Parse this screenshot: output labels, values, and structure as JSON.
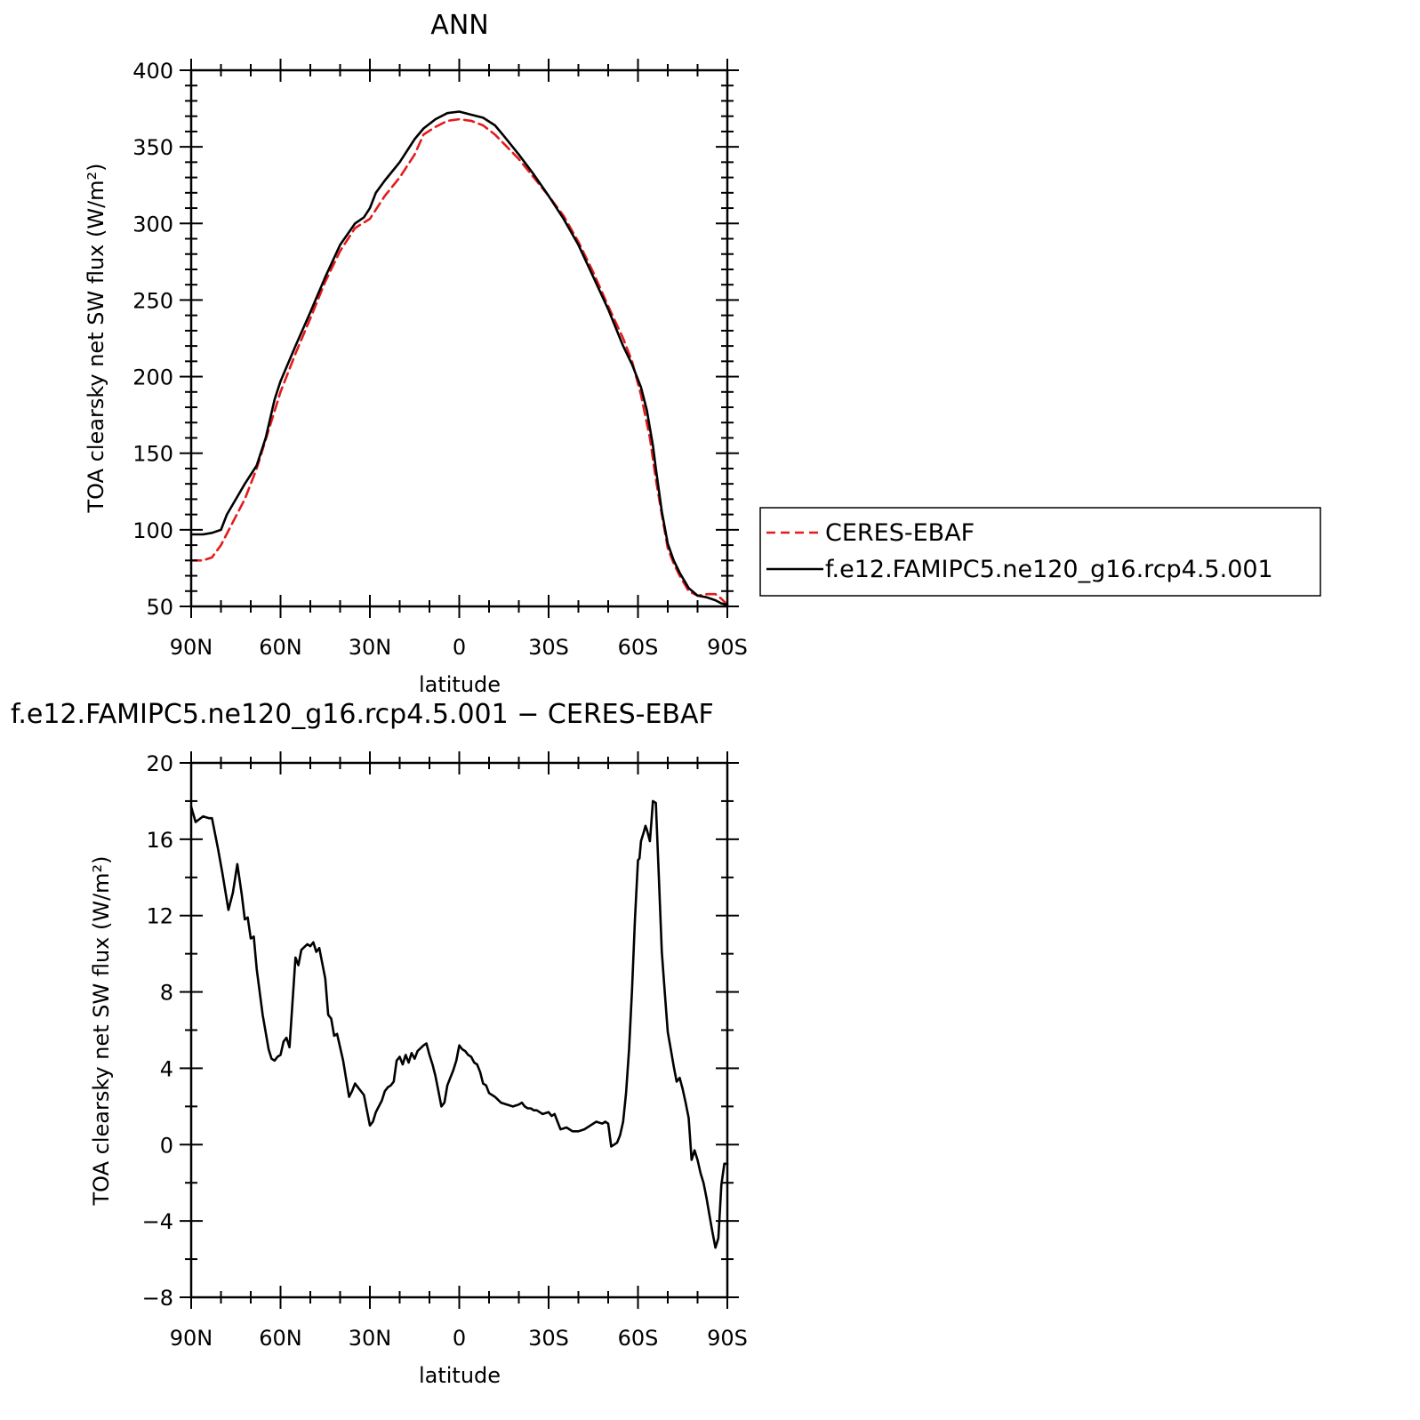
{
  "chart_data": [
    {
      "type": "line",
      "title": "ANN",
      "xlabel": "latitude",
      "ylabel": "TOA clearsky net SW flux (W/m²)",
      "xlim": [
        90,
        -90
      ],
      "ylim": [
        50,
        400
      ],
      "xticks": [
        90,
        60,
        30,
        0,
        -30,
        -60,
        -90
      ],
      "xtick_labels": [
        "90N",
        "60N",
        "30N",
        "0",
        "30S",
        "60S",
        "90S"
      ],
      "yticks": [
        50,
        100,
        150,
        200,
        250,
        300,
        350,
        400
      ],
      "ytick_labels": [
        "50",
        "100",
        "150",
        "200",
        "250",
        "300",
        "350",
        "400"
      ],
      "legend": {
        "placement": "right",
        "entries": [
          "CERES-EBAF",
          "f.e12.FAMIPC5.ne120_g16.rcp4.5.001"
        ]
      },
      "series": [
        {
          "name": "CERES-EBAF",
          "color": "#e41a1c",
          "dash": "dashed",
          "x": [
            90,
            86,
            83,
            80,
            76,
            72,
            68,
            64,
            60,
            55,
            50,
            45,
            40,
            35,
            30,
            25,
            20,
            15,
            12,
            8,
            4,
            0,
            -4,
            -8,
            -12,
            -15,
            -20,
            -25,
            -30,
            -35,
            -40,
            -45,
            -50,
            -55,
            -58,
            -61,
            -64,
            -66,
            -68,
            -70,
            -72,
            -74,
            -77,
            -80,
            -83,
            -86,
            -88,
            -90
          ],
          "y": [
            80,
            80,
            82,
            90,
            105,
            120,
            140,
            165,
            190,
            215,
            238,
            262,
            282,
            297,
            303,
            318,
            330,
            345,
            358,
            363,
            367,
            368,
            367,
            364,
            358,
            352,
            342,
            330,
            318,
            305,
            288,
            268,
            246,
            225,
            210,
            188,
            160,
            133,
            110,
            88,
            78,
            70,
            60,
            57,
            58,
            58,
            55,
            51
          ]
        },
        {
          "name": "f.e12.FAMIPC5.ne120_g16.rcp4.5.001",
          "color": "#000000",
          "dash": "solid",
          "x": [
            90,
            86,
            83,
            80,
            78,
            75,
            72,
            68,
            65,
            62,
            60,
            55,
            50,
            45,
            40,
            35,
            32,
            30,
            28,
            25,
            20,
            15,
            12,
            8,
            4,
            0,
            -4,
            -8,
            -12,
            -15,
            -20,
            -25,
            -30,
            -35,
            -40,
            -45,
            -50,
            -55,
            -58,
            -61,
            -63,
            -65,
            -66,
            -68,
            -70,
            -72,
            -74,
            -77,
            -80,
            -83,
            -86,
            -88,
            -90
          ],
          "y": [
            97,
            97,
            98,
            100,
            110,
            120,
            130,
            142,
            160,
            185,
            197,
            220,
            242,
            265,
            286,
            300,
            304,
            310,
            320,
            328,
            340,
            355,
            362,
            368,
            372,
            373,
            371,
            369,
            364,
            357,
            345,
            332,
            318,
            303,
            286,
            265,
            244,
            220,
            208,
            193,
            178,
            155,
            140,
            112,
            91,
            80,
            72,
            62,
            57,
            56,
            54,
            52,
            51
          ]
        }
      ]
    },
    {
      "type": "line",
      "title": "f.e12.FAMIPC5.ne120_g16.rcp4.5.001 − CERES-EBAF",
      "xlabel": "latitude",
      "ylabel": "TOA clearsky net SW flux (W/m²)",
      "xlim": [
        90,
        -90
      ],
      "ylim": [
        -8,
        20
      ],
      "xticks": [
        90,
        60,
        30,
        0,
        -30,
        -60,
        -90
      ],
      "xtick_labels": [
        "90N",
        "60N",
        "30N",
        "0",
        "30S",
        "60S",
        "90S"
      ],
      "yticks": [
        -8,
        -4,
        0,
        4,
        8,
        12,
        16,
        20
      ],
      "ytick_labels": [
        "−8",
        "−4",
        "0",
        "4",
        "8",
        "12",
        "16",
        "20"
      ],
      "series": [
        {
          "color": "#000000",
          "dash": "solid",
          "x": [
            90,
            88.5,
            86,
            84,
            83,
            81,
            79.5,
            77.5,
            76,
            74.5,
            73,
            72,
            71,
            70,
            69,
            68,
            66,
            64,
            63,
            62,
            61,
            60,
            59,
            58,
            57,
            55,
            54,
            53,
            51,
            50,
            49,
            48,
            47,
            45,
            44,
            43,
            42,
            41,
            39,
            37,
            36,
            35,
            34,
            32,
            30,
            29,
            28,
            27,
            26,
            25,
            24,
            23,
            22,
            21,
            20,
            19,
            18,
            17,
            16,
            15,
            14,
            12,
            11,
            10,
            9,
            8,
            7,
            6,
            5,
            4,
            3,
            2,
            1,
            0,
            -1,
            -2,
            -3,
            -4,
            -5,
            -6,
            -7,
            -8,
            -9,
            -10,
            -12,
            -14,
            -16,
            -18,
            -20,
            -21,
            -22,
            -23,
            -24,
            -25,
            -26,
            -27,
            -28,
            -30,
            -31,
            -32,
            -33,
            -34,
            -36,
            -38,
            -40,
            -42,
            -44,
            -46,
            -48,
            -49,
            -50,
            -50.5,
            -51,
            -52,
            -53,
            -54,
            -55,
            -56,
            -57,
            -58,
            -59,
            -60,
            -60.5,
            -61,
            -62,
            -62.5,
            -63,
            -64,
            -64.5,
            -65,
            -66,
            -67,
            -68,
            -69,
            -70,
            -71,
            -72,
            -73,
            -74,
            -75,
            -76,
            -77,
            -78,
            -79,
            -80,
            -81,
            -82,
            -83,
            -84,
            -85,
            -86,
            -87,
            -88,
            -89,
            -90
          ],
          "y": [
            17.7,
            16.9,
            17.2,
            17.1,
            17.1,
            15.5,
            14.2,
            12.3,
            13.2,
            14.7,
            13.1,
            11.8,
            11.9,
            10.8,
            10.9,
            9.2,
            6.8,
            5.0,
            4.5,
            4.4,
            4.6,
            4.7,
            5.4,
            5.6,
            5.1,
            9.8,
            9.4,
            10.2,
            10.5,
            10.4,
            10.6,
            10.1,
            10.3,
            8.7,
            6.8,
            6.6,
            5.7,
            5.8,
            4.4,
            2.5,
            2.8,
            3.2,
            3.0,
            2.6,
            1.0,
            1.2,
            1.7,
            2.0,
            2.3,
            2.8,
            3.0,
            3.1,
            3.3,
            4.4,
            4.6,
            4.2,
            4.7,
            4.3,
            4.8,
            4.5,
            4.9,
            5.2,
            5.3,
            4.7,
            4.2,
            3.6,
            2.8,
            2.0,
            2.2,
            3.1,
            3.5,
            3.9,
            4.4,
            5.2,
            5.0,
            4.9,
            4.7,
            4.6,
            4.3,
            4.2,
            3.8,
            3.2,
            3.1,
            2.7,
            2.5,
            2.2,
            2.1,
            2.0,
            2.1,
            2.2,
            2.0,
            1.9,
            1.9,
            1.8,
            1.8,
            1.7,
            1.6,
            1.7,
            1.5,
            1.6,
            1.2,
            0.8,
            0.9,
            0.7,
            0.7,
            0.8,
            1.0,
            1.2,
            1.1,
            1.2,
            1.1,
            0.5,
            -0.1,
            0.0,
            0.1,
            0.5,
            1.2,
            2.7,
            5.0,
            8.1,
            11.8,
            14.9,
            15.0,
            15.9,
            16.4,
            16.7,
            16.5,
            15.9,
            16.9,
            18.0,
            17.9,
            14.0,
            10.1,
            8.0,
            5.9,
            5.0,
            4.1,
            3.3,
            3.5,
            2.9,
            2.2,
            1.4,
            -0.8,
            -0.3,
            -0.8,
            -1.5,
            -2.0,
            -2.8,
            -3.7,
            -4.6,
            -5.4,
            -4.9,
            -2.1,
            -1.0,
            -1.0
          ]
        }
      ]
    }
  ]
}
